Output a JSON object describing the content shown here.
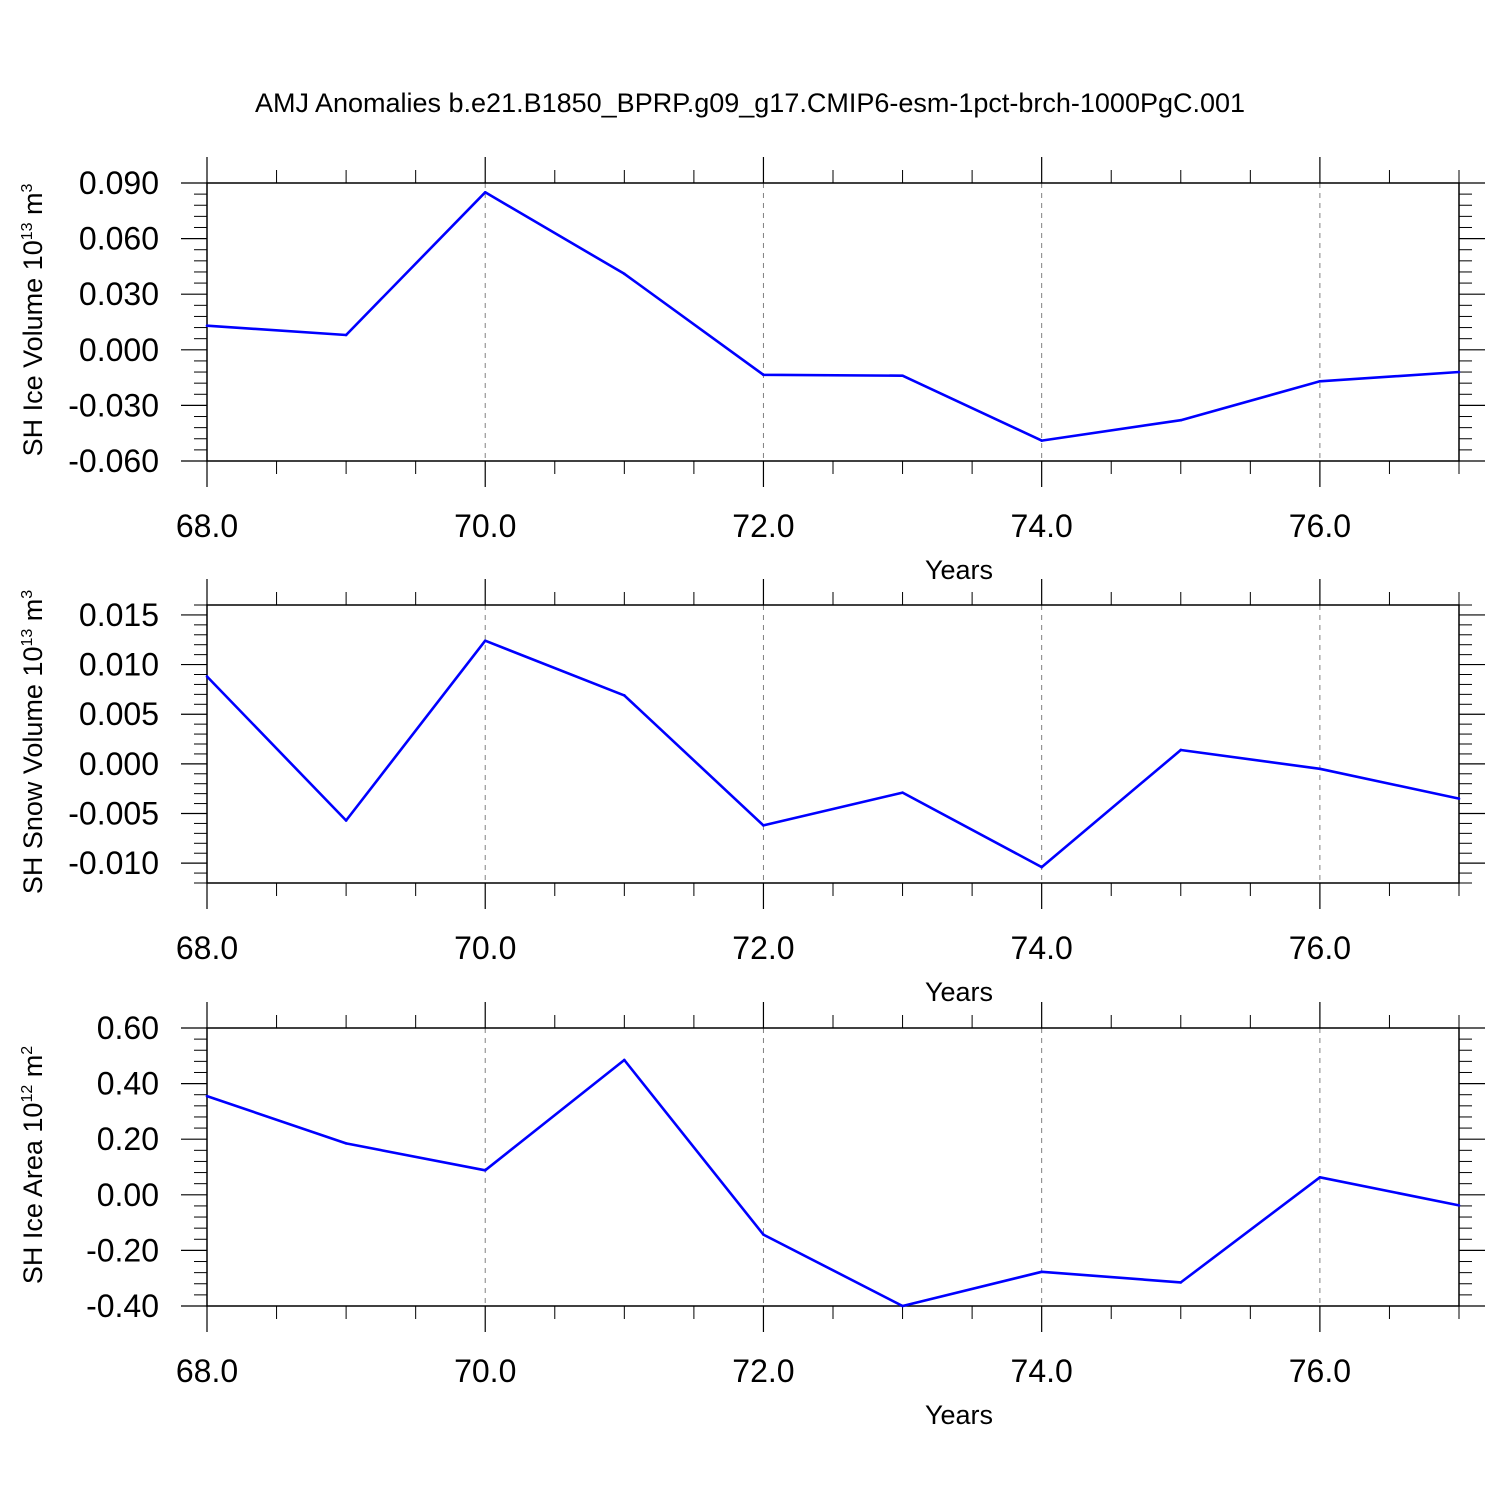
{
  "title": "AMJ Anomalies b.e21.B1850_BPRP.g09_g17.CMIP6-esm-1pct-brch-1000PgC.001",
  "colors": {
    "line": "#0000ff",
    "axis": "#000000",
    "grid": "#808080"
  },
  "chart_data": [
    {
      "type": "line",
      "ylabel": "SH Ice Volume",
      "ylabel_unit_base": "10",
      "ylabel_unit_exp": "13",
      "ylabel_unit_m": "m",
      "ylabel_unit_m_exp": "3",
      "xlabel": "Years",
      "xlim": [
        68,
        77
      ],
      "ylim": [
        -0.06,
        0.09
      ],
      "x_ticks": [
        68,
        70,
        72,
        74,
        76
      ],
      "x_tick_labels": [
        "68.0",
        "70.0",
        "72.0",
        "74.0",
        "76.0"
      ],
      "y_ticks": [
        0.09,
        0.06,
        0.03,
        0.0,
        -0.03,
        -0.06
      ],
      "y_tick_labels": [
        "0.090",
        "0.060",
        "0.030",
        "0.000",
        "-0.030",
        "-0.060"
      ],
      "grid": "vertical dashed at major x ticks",
      "x": [
        68,
        69,
        70,
        71,
        72,
        73,
        74,
        75,
        76,
        77
      ],
      "values": [
        0.013,
        0.008,
        0.085,
        0.041,
        -0.0135,
        -0.014,
        -0.049,
        -0.038,
        -0.017,
        -0.012
      ]
    },
    {
      "type": "line",
      "ylabel": "SH Snow Volume",
      "ylabel_unit_base": "10",
      "ylabel_unit_exp": "13",
      "ylabel_unit_m": "m",
      "ylabel_unit_m_exp": "3",
      "xlabel": "Years",
      "xlim": [
        68,
        77
      ],
      "ylim": [
        -0.012,
        0.016
      ],
      "x_ticks": [
        68,
        70,
        72,
        74,
        76
      ],
      "x_tick_labels": [
        "68.0",
        "70.0",
        "72.0",
        "74.0",
        "76.0"
      ],
      "y_ticks": [
        0.015,
        0.01,
        0.005,
        0.0,
        -0.005,
        -0.01
      ],
      "y_tick_labels": [
        "0.015",
        "0.010",
        "0.005",
        "0.000",
        "-0.005",
        "-0.010"
      ],
      "grid": "vertical dashed at major x ticks",
      "x": [
        68,
        69,
        70,
        71,
        72,
        73,
        74,
        75,
        76,
        77
      ],
      "values": [
        0.0088,
        -0.0057,
        0.0124,
        0.0069,
        -0.0062,
        -0.0029,
        -0.0104,
        0.0014,
        -0.0005,
        -0.0035
      ]
    },
    {
      "type": "line",
      "ylabel": "SH Ice Area",
      "ylabel_unit_base": "10",
      "ylabel_unit_exp": "12",
      "ylabel_unit_m": "m",
      "ylabel_unit_m_exp": "2",
      "xlabel": "Years",
      "xlim": [
        68,
        77
      ],
      "ylim": [
        -0.4,
        0.6
      ],
      "x_ticks": [
        68,
        70,
        72,
        74,
        76
      ],
      "x_tick_labels": [
        "68.0",
        "70.0",
        "72.0",
        "74.0",
        "76.0"
      ],
      "y_ticks": [
        0.6,
        0.4,
        0.2,
        0.0,
        -0.2,
        -0.4
      ],
      "y_tick_labels": [
        "0.60",
        "0.40",
        "0.20",
        "0.00",
        "-0.20",
        "-0.40"
      ],
      "grid": "vertical dashed at major x ticks",
      "x": [
        68,
        69,
        70,
        71,
        72,
        73,
        74,
        75,
        76,
        77
      ],
      "values": [
        0.355,
        0.185,
        0.088,
        0.485,
        -0.143,
        -0.4,
        -0.277,
        -0.315,
        0.063,
        -0.038
      ]
    }
  ]
}
